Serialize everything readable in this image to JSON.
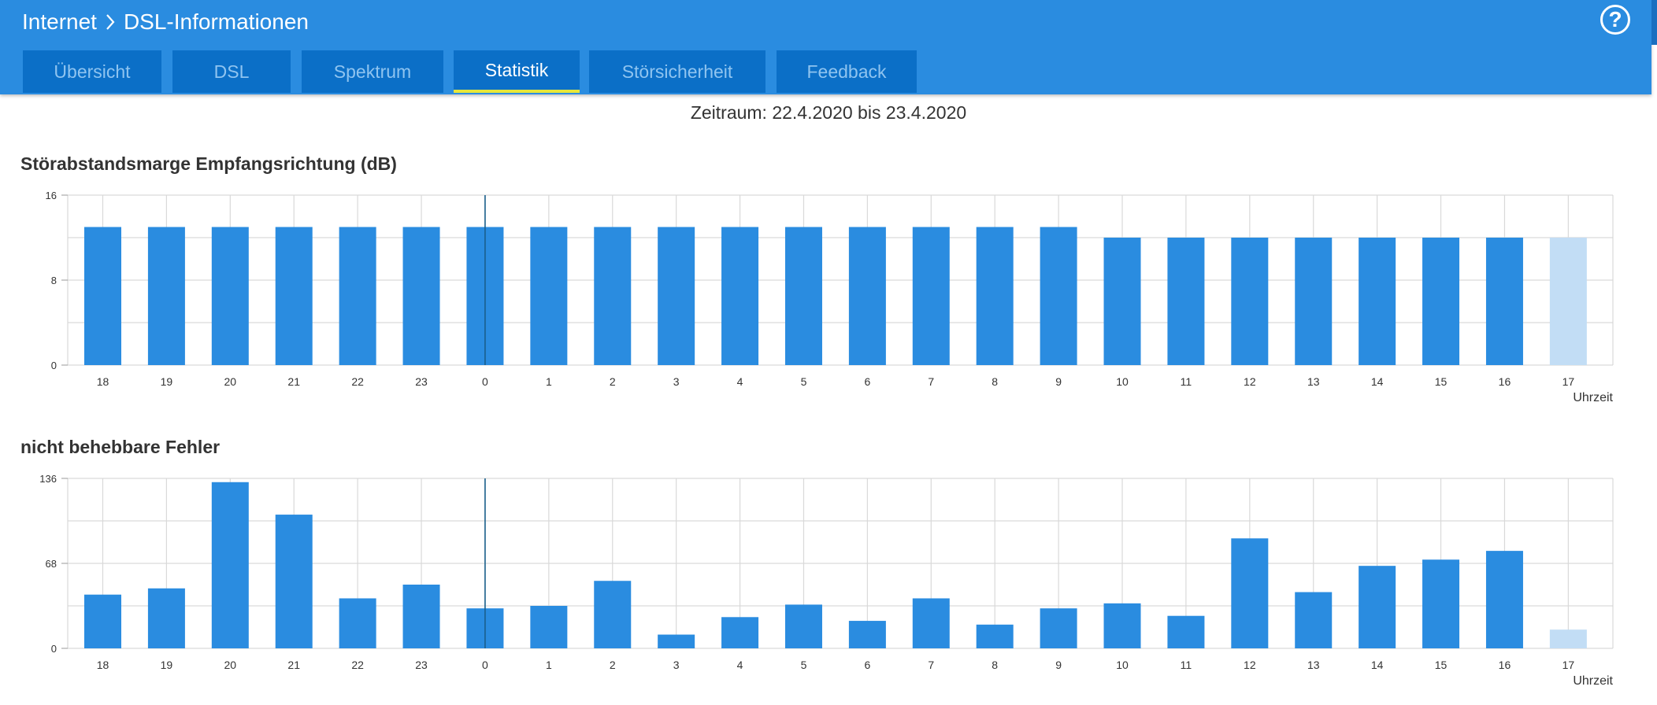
{
  "breadcrumb": {
    "root": "Internet",
    "current": "DSL-Informationen",
    "separator_icon": "chevron-right-icon"
  },
  "help": {
    "label": "?"
  },
  "tabs": [
    {
      "label": "Übersicht",
      "active": false
    },
    {
      "label": "DSL",
      "active": false
    },
    {
      "label": "Spektrum",
      "active": false
    },
    {
      "label": "Statistik",
      "active": true
    },
    {
      "label": "Störsicherheit",
      "active": false
    },
    {
      "label": "Feedback",
      "active": false
    }
  ],
  "period": "Zeitraum: 22.4.2020 bis 23.4.2020",
  "colors": {
    "header": "#2a8ce0",
    "tab": "#0b6fc7",
    "tab_active_underline": "#e6e63a",
    "bar": "#2a8ce0",
    "bar_current": "#c2ddf5",
    "grid": "#d9d9d9",
    "marker": "#1a5f8c"
  },
  "charts": [
    {
      "title": "Störabstandsmarge Empfangsrichtung (dB)",
      "xlabel": "Uhrzeit",
      "chart_data": {
        "type": "bar",
        "categories": [
          "18",
          "19",
          "20",
          "21",
          "22",
          "23",
          "0",
          "1",
          "2",
          "3",
          "4",
          "5",
          "6",
          "7",
          "8",
          "9",
          "10",
          "11",
          "12",
          "13",
          "14",
          "15",
          "16",
          "17"
        ],
        "values": [
          13,
          13,
          13,
          13,
          13,
          13,
          13,
          13,
          13,
          13,
          13,
          13,
          13,
          13,
          13,
          13,
          12,
          12,
          12,
          12,
          12,
          12,
          12,
          12
        ],
        "current_index": 23,
        "marker_category": "0",
        "ylim": [
          0,
          16
        ],
        "yticks": [
          0,
          8,
          16
        ],
        "grid": true
      }
    },
    {
      "title": "nicht behebbare Fehler",
      "xlabel": "Uhrzeit",
      "chart_data": {
        "type": "bar",
        "categories": [
          "18",
          "19",
          "20",
          "21",
          "22",
          "23",
          "0",
          "1",
          "2",
          "3",
          "4",
          "5",
          "6",
          "7",
          "8",
          "9",
          "10",
          "11",
          "12",
          "13",
          "14",
          "15",
          "16",
          "17"
        ],
        "values": [
          43,
          48,
          133,
          107,
          40,
          51,
          32,
          34,
          54,
          11,
          25,
          35,
          22,
          40,
          19,
          32,
          36,
          26,
          88,
          45,
          66,
          71,
          78,
          15
        ],
        "current_index": 23,
        "marker_category": "0",
        "ylim": [
          0,
          136
        ],
        "yticks": [
          0,
          68,
          136
        ],
        "grid": true
      }
    }
  ]
}
